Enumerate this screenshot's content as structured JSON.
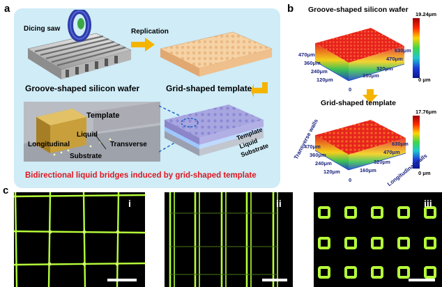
{
  "panel_labels": {
    "a": "a",
    "b": "b",
    "c": "c"
  },
  "panel_a": {
    "dicing_saw": "Dicing saw",
    "replication": "Replication",
    "groove_wafer": "Groove-shaped silicon wafer",
    "grid_template": "Grid-shaped template",
    "template": "Template",
    "liquid": "Liquid",
    "longitudinal": "Longitudinal",
    "transverse": "Transverse",
    "substrate": "Substrate",
    "stack_template": "Template",
    "stack_liquid": "Liquid",
    "stack_substrate": "Substrate",
    "caption": "Bidirectional liquid bridges induced by grid-shaped template",
    "colors": {
      "panel_bg": "#cfecf7",
      "caption": "#e0161e",
      "arrow": "#f5b400"
    }
  },
  "panel_b": {
    "top": {
      "title": "Groove-shaped silicon wafer",
      "cbar_max": "19.24μm",
      "cbar_min": "0 μm",
      "axis_left": [
        "470μm",
        "360μm",
        "240μm",
        "120μm",
        "0"
      ],
      "axis_right": [
        "630μm",
        "470μm",
        "320μm",
        "160μm"
      ]
    },
    "bottom": {
      "title": "Grid-shaped template",
      "cbar_max": "17.76μm",
      "cbar_min": "0 μm",
      "axis_left": [
        "470μm",
        "360μm",
        "240μm",
        "120μm",
        "0"
      ],
      "axis_right": [
        "630μm",
        "470μm",
        "320μm",
        "160μm"
      ],
      "side_left": "Transverse walls",
      "side_right": "Longitudinal walls"
    }
  },
  "panel_c": {
    "labels": [
      "i",
      "ii",
      "iii"
    ],
    "colors": {
      "line": "#b6ff3a",
      "bg": "#000000"
    }
  }
}
